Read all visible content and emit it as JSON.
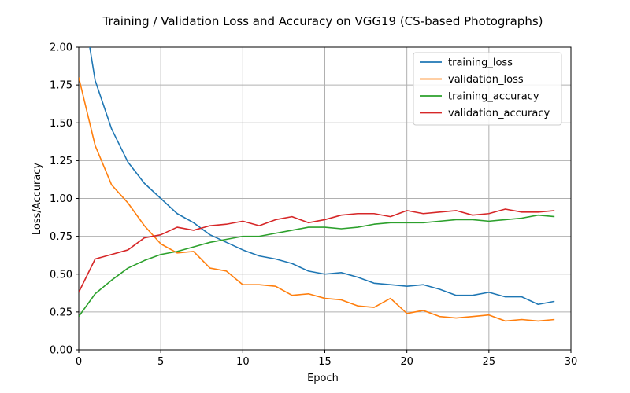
{
  "chart_data": {
    "type": "line",
    "title": "Training / Validation Loss and Accuracy on VGG19 (CS-based Photographs)",
    "xlabel": "Epoch",
    "ylabel": "Loss/Accuracy",
    "xlim": [
      0,
      30
    ],
    "ylim": [
      0,
      2.0
    ],
    "xticks": [
      "0",
      "5",
      "10",
      "15",
      "20",
      "25",
      "30"
    ],
    "yticks": [
      "0.00",
      "0.25",
      "0.50",
      "0.75",
      "1.00",
      "1.25",
      "1.50",
      "1.75",
      "2.00"
    ],
    "grid": true,
    "legend_position": "upper-right",
    "x": [
      0,
      1,
      2,
      3,
      4,
      5,
      6,
      7,
      8,
      9,
      10,
      11,
      12,
      13,
      14,
      15,
      16,
      17,
      18,
      19,
      20,
      21,
      22,
      23,
      24,
      25,
      26,
      27,
      28,
      29
    ],
    "series": [
      {
        "name": "training_loss",
        "color": "#1f77b4",
        "values": [
          2.45,
          1.78,
          1.46,
          1.24,
          1.1,
          1.0,
          0.9,
          0.84,
          0.76,
          0.71,
          0.66,
          0.62,
          0.6,
          0.57,
          0.52,
          0.5,
          0.51,
          0.48,
          0.44,
          0.43,
          0.42,
          0.43,
          0.4,
          0.36,
          0.36,
          0.38,
          0.35,
          0.35,
          0.3,
          0.32
        ]
      },
      {
        "name": "validation_loss",
        "color": "#ff7f0e",
        "values": [
          1.8,
          1.35,
          1.09,
          0.97,
          0.82,
          0.7,
          0.64,
          0.65,
          0.54,
          0.52,
          0.43,
          0.43,
          0.42,
          0.36,
          0.37,
          0.34,
          0.33,
          0.29,
          0.28,
          0.34,
          0.24,
          0.26,
          0.22,
          0.21,
          0.22,
          0.23,
          0.19,
          0.2,
          0.19,
          0.2
        ]
      },
      {
        "name": "training_accuracy",
        "color": "#2ca02c",
        "values": [
          0.22,
          0.37,
          0.46,
          0.54,
          0.59,
          0.63,
          0.65,
          0.68,
          0.71,
          0.73,
          0.75,
          0.75,
          0.77,
          0.79,
          0.81,
          0.81,
          0.8,
          0.81,
          0.83,
          0.84,
          0.84,
          0.84,
          0.85,
          0.86,
          0.86,
          0.85,
          0.86,
          0.87,
          0.89,
          0.88
        ]
      },
      {
        "name": "validation_accuracy",
        "color": "#d62728",
        "values": [
          0.38,
          0.6,
          0.63,
          0.66,
          0.74,
          0.76,
          0.81,
          0.79,
          0.82,
          0.83,
          0.85,
          0.82,
          0.86,
          0.88,
          0.84,
          0.86,
          0.89,
          0.9,
          0.9,
          0.88,
          0.92,
          0.9,
          0.91,
          0.92,
          0.89,
          0.9,
          0.93,
          0.91,
          0.91,
          0.92
        ]
      }
    ]
  }
}
